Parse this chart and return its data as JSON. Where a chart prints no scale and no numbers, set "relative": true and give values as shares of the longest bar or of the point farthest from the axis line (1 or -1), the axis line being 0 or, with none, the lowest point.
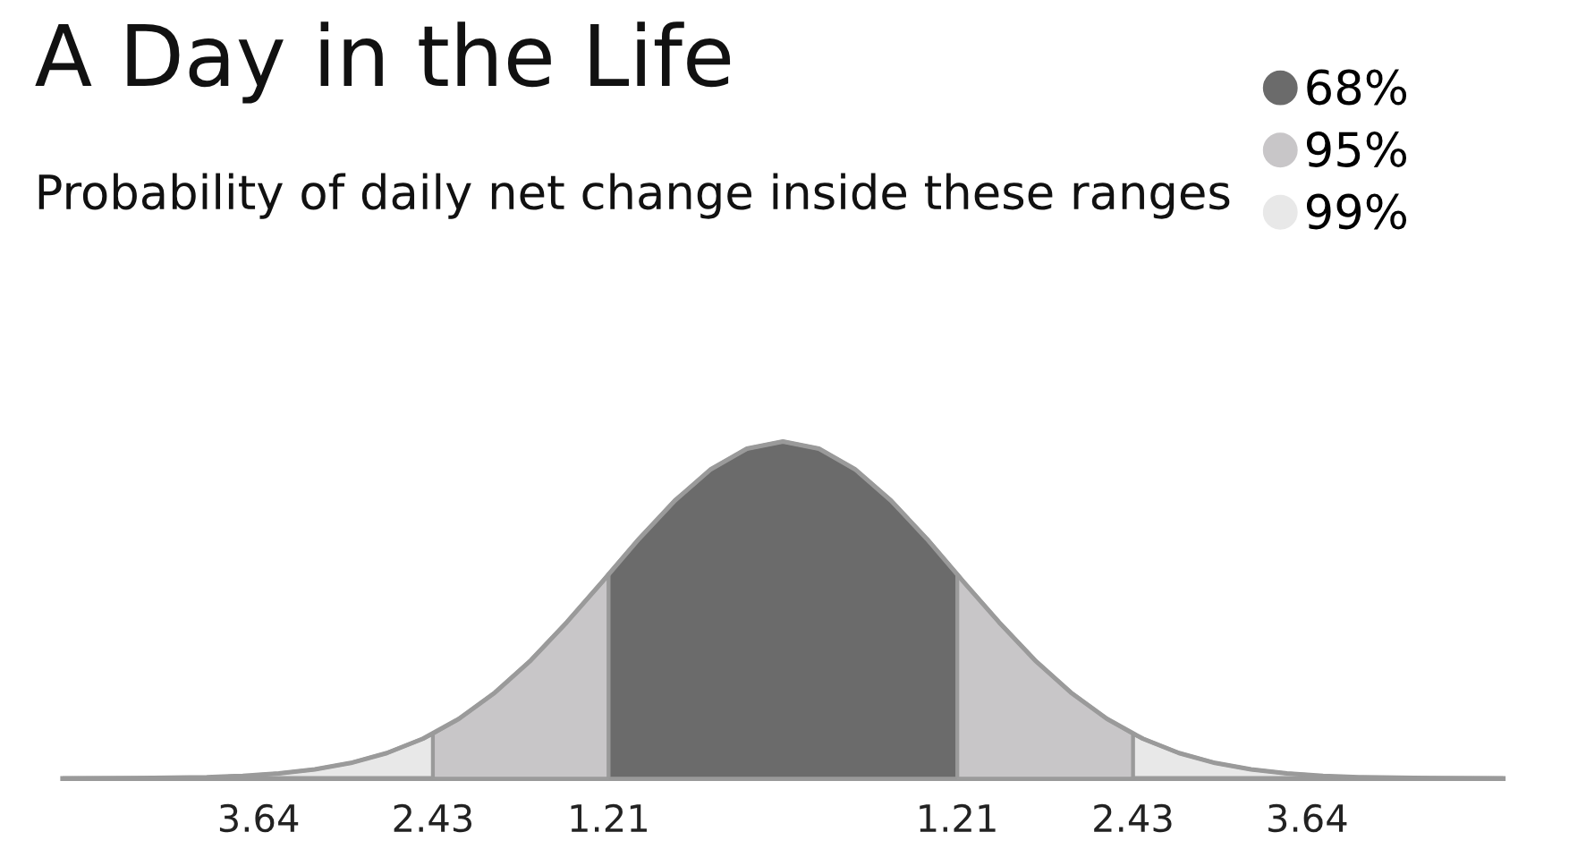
{
  "chart_data": {
    "type": "area",
    "title": "A Day in the Life",
    "subtitle": "Probability of daily net change inside these ranges",
    "relative": true,
    "legend": "top right",
    "tick_labels": "x",
    "xlim": [
      -5,
      5
    ],
    "xticks": [
      {
        "value": -3.64,
        "label": "3.64"
      },
      {
        "value": -2.43,
        "label": "2.43"
      },
      {
        "value": -1.21,
        "label": "1.21"
      },
      {
        "value": 1.21,
        "label": "1.21"
      },
      {
        "value": 2.43,
        "label": "2.43"
      },
      {
        "value": 3.64,
        "label": "3.64"
      }
    ],
    "series": [
      {
        "name": "68%",
        "color": "#6b6b6b",
        "x": [
          -1.21,
          -1.0,
          -0.75,
          -0.5,
          -0.25,
          0,
          0.25,
          0.5,
          0.75,
          1.0,
          1.21
        ],
        "values": [
          0.607,
          0.711,
          0.825,
          0.918,
          0.979,
          1,
          0.979,
          0.918,
          0.825,
          0.711,
          0.607
        ]
      },
      {
        "name": "95%",
        "color": "#c8c6c8",
        "x": [
          -2.43,
          -2.25,
          -2.0,
          -1.75,
          -1.5,
          -1.25,
          -1.21,
          null,
          1.21,
          1.25,
          1.5,
          1.75,
          2.0,
          2.25,
          2.43
        ],
        "values": [
          0.133,
          0.177,
          0.255,
          0.351,
          0.464,
          0.586,
          0.607,
          null,
          0.607,
          0.586,
          0.464,
          0.351,
          0.255,
          0.177,
          0.133
        ]
      },
      {
        "name": "99%",
        "color": "#e8e8e8",
        "x": [
          -3.64,
          -3.5,
          -3.25,
          -3.0,
          -2.75,
          -2.5,
          -2.43,
          null,
          2.43,
          2.5,
          2.75,
          3.0,
          3.25,
          3.5,
          3.64
        ],
        "values": [
          0.0108,
          0.0152,
          0.0271,
          0.0463,
          0.0756,
          0.118,
          0.133,
          null,
          0.133,
          0.118,
          0.0756,
          0.0463,
          0.0271,
          0.0152,
          0.0108
        ]
      },
      {
        "type": "line",
        "color": "#9a9a9a",
        "x": [
          -5,
          -4.5,
          -4.0,
          -3.75,
          -3.5,
          -3.25,
          -3.0,
          -2.75,
          -2.5,
          -2.25,
          -2.0,
          -1.75,
          -1.5,
          -1.25,
          -1.0,
          -0.75,
          -0.5,
          -0.25,
          0,
          0.25,
          0.5,
          0.75,
          1.0,
          1.25,
          1.5,
          1.75,
          2.0,
          2.25,
          2.5,
          2.75,
          3.0,
          3.25,
          3.5,
          3.75,
          4.0,
          4.5,
          5
        ],
        "values": [
          0.0002,
          0.001,
          0.0042,
          0.0082,
          0.0152,
          0.0271,
          0.0463,
          0.0756,
          0.118,
          0.177,
          0.255,
          0.351,
          0.464,
          0.586,
          0.711,
          0.825,
          0.918,
          0.979,
          1,
          0.979,
          0.918,
          0.825,
          0.711,
          0.586,
          0.464,
          0.351,
          0.255,
          0.177,
          0.118,
          0.0756,
          0.0463,
          0.0271,
          0.0152,
          0.0082,
          0.0042,
          0.001,
          0.0002
        ]
      }
    ]
  }
}
